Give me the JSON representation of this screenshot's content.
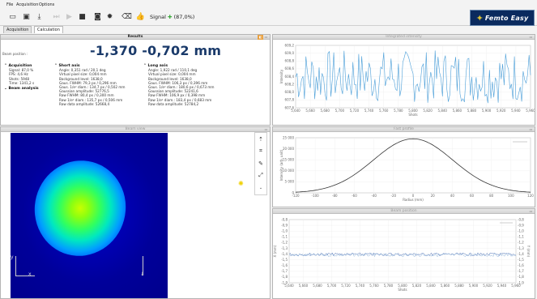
{
  "menu": {
    "file": "File",
    "acquisition": "Acquisition",
    "options": "Options"
  },
  "toolbar": {
    "signal_label": "Signal",
    "signal_value": "(87,0%)"
  },
  "logo": {
    "text": "Femto Easy"
  },
  "tabs": [
    {
      "label": "Acquisition"
    },
    {
      "label": "Calculation"
    }
  ],
  "results": {
    "title": "Results",
    "beam_position_label": "Beam position :",
    "beam_position": "-1,370 -0,702 mm",
    "acquisition": {
      "heading": "Acquisition",
      "lines": [
        "Signal: 87,0 %",
        "FPS: 4,6 Hz",
        "Shots: 5948",
        "Time: 1341,2 s"
      ]
    },
    "beam_analysis": "Beam analysis",
    "short_axis": {
      "heading": "Short axis",
      "lines": [
        "Angle: 0,351 rad / 20,1 deg",
        "Virtual pixel size: 0,004 mm",
        "Background level: 1638,0",
        "Gaus. FWHM: 79,3 px / 0,296 mm",
        "Gaus. 1/e² diam.: 134,7 px / 0,502 mm",
        "Gaussian amplitude: 52776,5",
        "Raw FWHM: 80,4 px / 0,300 mm",
        "Raw 1/e² diam.: 135,7 px / 0,506 mm",
        "Raw data amplitude: 52668,4"
      ]
    },
    "long_axis": {
      "heading": "Long axis",
      "lines": [
        "Angle: 1,922 rad / 110,1 deg",
        "Virtual pixel size: 0,004 mm",
        "Background level: 1638,0",
        "Gaus. FWHM: 106,3 px / 0,396 mm",
        "Gaus. 1/e² diam.: 180,6 px / 0,673 mm",
        "Gaussian amplitude: 52241,6",
        "Raw FWHM: 106,9 px / 0,398 mm",
        "Raw 1/e² diam.: 183,4 px / 0,683 mm",
        "Raw data amplitude: 52784,2"
      ]
    }
  },
  "panels": {
    "integrated_intensity": "Integrated intensity",
    "beam_view": "Beam view",
    "fast_profile": "Fast profile",
    "beam_position_plot": "Beam position"
  },
  "image": {
    "x_axis": "x",
    "y_axis": "y"
  },
  "charts": {
    "intensity": {
      "ylabel": "Intensity",
      "xlabel": "Shots",
      "yticks": [
        "609,2",
        "609,0",
        "608,8",
        "608,6",
        "608,4",
        "608,2",
        "608,0",
        "607,8",
        "607,6"
      ],
      "xticks": [
        "5,640",
        "5,660",
        "5,680",
        "5,700",
        "5,720",
        "5,740",
        "5,760",
        "5,780",
        "5,800",
        "5,820",
        "5,840",
        "5,860",
        "5,880",
        "5,900",
        "5,920",
        "5,940",
        "5,960"
      ]
    },
    "profile": {
      "ylabel": "Intensity (arb. unit)",
      "xlabel": "Radius (mm)",
      "yticks": [
        "25 000",
        "20 000",
        "15 000",
        "10 000",
        "5 000",
        "0"
      ],
      "xticks": [
        "-120",
        "-100",
        "-80",
        "-60",
        "-40",
        "-20",
        "0",
        "20",
        "40",
        "60",
        "80",
        "100",
        "120"
      ]
    },
    "position": {
      "ylabel": "X (mm)",
      "ylabel_right": "Y (mm)",
      "xlabel": "Shots",
      "yticks": [
        "-0,8",
        "-0,9",
        "-1,0",
        "-1,1",
        "-1,2",
        "-1,3",
        "-1,4",
        "-1,5",
        "-1,6",
        "-1,7",
        "-1,8",
        "-1,9"
      ],
      "yticks_right": [
        "-0,8",
        "-0,9",
        "-1,0",
        "-1,1",
        "-1,2",
        "-1,3",
        "-1,4",
        "-1,5",
        "-1,6",
        "-1,7",
        "-1,8",
        "-1,9"
      ],
      "xticks": [
        "5,640",
        "5,660",
        "5,680",
        "5,700",
        "5,720",
        "5,740",
        "5,760",
        "5,780",
        "5,800",
        "5,820",
        "5,840",
        "5,860",
        "5,880",
        "5,900",
        "5,920",
        "5,940",
        "5,960"
      ]
    }
  },
  "colors": {
    "line": "#4a9ed8",
    "profile": "#333333",
    "accent": "#1a3a6a"
  }
}
